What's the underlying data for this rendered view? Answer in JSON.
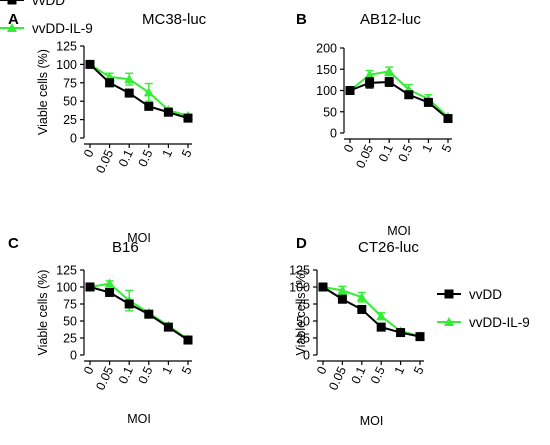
{
  "colors": {
    "vvDD": "#000000",
    "vvDD-IL-9": "#33ee33"
  },
  "legend": [
    {
      "name": "vvDD",
      "marker": "square",
      "color": "#000000"
    },
    {
      "name": "vvDD-IL-9",
      "marker": "triangle",
      "color": "#33ee33"
    }
  ],
  "chart_data": [
    {
      "panel_label": "A",
      "title": "MC38-luc",
      "type": "line",
      "categories": [
        "0",
        "0.05",
        "0.1",
        "0.5",
        "1",
        "5"
      ],
      "xlabel": "MOI",
      "ylabel": "Viable cells (%)",
      "ylim": [
        0,
        125
      ],
      "yticks": [
        0,
        25,
        50,
        75,
        100,
        125
      ],
      "legend": false,
      "series": [
        {
          "name": "vvDD",
          "values": [
            100,
            75,
            61,
            43,
            35,
            27
          ],
          "err": [
            0,
            5,
            5,
            3,
            2,
            2
          ]
        },
        {
          "name": "vvDD-IL-9",
          "values": [
            100,
            83,
            80,
            62,
            38,
            30
          ],
          "err": [
            0,
            5,
            8,
            12,
            3,
            2
          ]
        }
      ]
    },
    {
      "panel_label": "B",
      "title": "AB12-luc",
      "type": "line",
      "categories": [
        "0",
        "0.05",
        "0.1",
        "0.5",
        "1",
        "5"
      ],
      "xlabel": "MOI",
      "ylabel": "",
      "ylim": [
        0,
        200
      ],
      "yticks": [
        0,
        50,
        100,
        150,
        200
      ],
      "legend": true,
      "series": [
        {
          "name": "vvDD",
          "values": [
            100,
            118,
            120,
            90,
            72,
            34
          ],
          "err": [
            0,
            12,
            10,
            8,
            8,
            3
          ]
        },
        {
          "name": "vvDD-IL-9",
          "values": [
            100,
            137,
            145,
            102,
            80,
            38
          ],
          "err": [
            0,
            10,
            10,
            12,
            10,
            3
          ]
        }
      ]
    },
    {
      "panel_label": "C",
      "title": "B16",
      "type": "line",
      "categories": [
        "0",
        "0.05",
        "0.1",
        "0.5",
        "1",
        "5"
      ],
      "xlabel": "MOI",
      "ylabel": "Viable cells (%)",
      "ylim": [
        0,
        125
      ],
      "yticks": [
        0,
        25,
        50,
        75,
        100,
        125
      ],
      "legend": false,
      "series": [
        {
          "name": "vvDD",
          "values": [
            100,
            92,
            75,
            60,
            41,
            22
          ],
          "err": [
            0,
            4,
            5,
            3,
            3,
            2
          ]
        },
        {
          "name": "vvDD-IL-9",
          "values": [
            100,
            105,
            80,
            62,
            43,
            23
          ],
          "err": [
            0,
            4,
            15,
            3,
            3,
            2
          ]
        }
      ]
    },
    {
      "panel_label": "D",
      "title": "CT26-luc",
      "type": "line",
      "categories": [
        "0",
        "0.05",
        "0.1",
        "0.5",
        "1",
        "5"
      ],
      "xlabel": "MOI",
      "ylabel": "Viable cells (%)",
      "ylim": [
        0,
        125
      ],
      "yticks": [
        0,
        25,
        50,
        75,
        100,
        125
      ],
      "legend": true,
      "series": [
        {
          "name": "vvDD",
          "values": [
            100,
            82,
            67,
            41,
            33,
            27
          ],
          "err": [
            0,
            4,
            3,
            3,
            3,
            2
          ]
        },
        {
          "name": "vvDD-IL-9",
          "values": [
            100,
            95,
            85,
            57,
            35,
            28
          ],
          "err": [
            0,
            6,
            7,
            5,
            3,
            2
          ]
        }
      ]
    }
  ]
}
